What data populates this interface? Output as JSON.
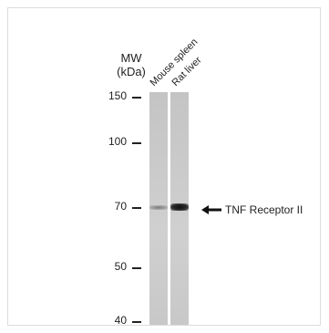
{
  "mw_header": {
    "line1": "MW",
    "line2": "(kDa)"
  },
  "lanes": [
    {
      "label": "Mouse spleen"
    },
    {
      "label": "Rat liver"
    }
  ],
  "mw_markers": [
    {
      "label": "150"
    },
    {
      "label": "100"
    },
    {
      "label": "70"
    },
    {
      "label": "50"
    },
    {
      "label": "40"
    }
  ],
  "band_annotation": {
    "label": "TNF Receptor II",
    "icon": "arrow-left-icon"
  },
  "colors": {
    "lane_background": "#c8c8c8",
    "band_dark": "#1e1e1e",
    "band_light": "#8a8a8a"
  }
}
